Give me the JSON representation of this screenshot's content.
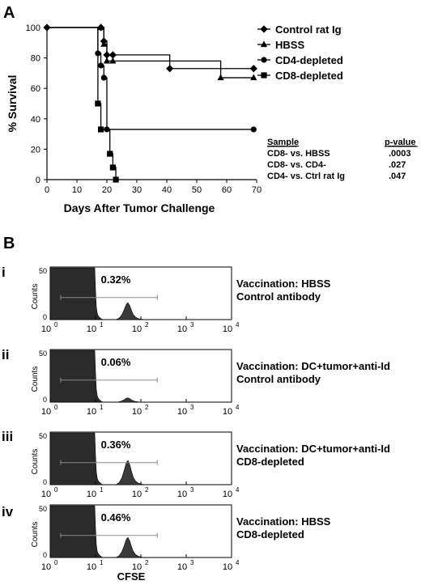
{
  "chart_data": [
    {
      "type": "line",
      "panel_label": "A",
      "xlabel": "Days After Tumor Challenge",
      "ylabel": "% Survival",
      "xlim": [
        0,
        70
      ],
      "ylim": [
        0,
        100
      ],
      "x_ticks": [
        "0",
        "10",
        "20",
        "30",
        "40",
        "50",
        "60",
        "70"
      ],
      "y_ticks": [
        "0",
        "20",
        "40",
        "60",
        "80",
        "100"
      ],
      "legend_placement": "top-right",
      "series": [
        {
          "name": "Control rat Ig",
          "marker": "diamond",
          "x": [
            0,
            18,
            19,
            20,
            22,
            41,
            69
          ],
          "y": [
            100,
            100,
            91,
            82,
            82,
            73,
            73
          ]
        },
        {
          "name": "HBSS",
          "marker": "triangle",
          "x": [
            0,
            18,
            19,
            20,
            22,
            58,
            69
          ],
          "y": [
            100,
            100,
            89,
            78,
            78,
            67,
            67
          ]
        },
        {
          "name": "CD4-depleted",
          "marker": "circle",
          "x": [
            0,
            17,
            18,
            19,
            20,
            69
          ],
          "y": [
            100,
            83,
            75,
            67,
            33,
            33
          ]
        },
        {
          "name": "CD8-depleted",
          "marker": "square",
          "x": [
            0,
            17,
            18,
            21,
            22,
            23
          ],
          "y": [
            100,
            50,
            33,
            17,
            8,
            0
          ]
        }
      ],
      "stats_table": {
        "header_sample": "Sample",
        "header_pvalue": "p-value",
        "rows": [
          {
            "sample": "CD8- vs. HBSS",
            "p": ".0003"
          },
          {
            "sample": "CD8- vs. CD4-",
            "p": ".027"
          },
          {
            "sample": "CD4- vs. Ctrl rat Ig",
            "p": ".047"
          }
        ]
      }
    },
    {
      "type": "area",
      "panel_label": "B",
      "xlabel": "CFSE",
      "ylabel": "Counts",
      "x_scale": "log",
      "xlim": [
        1,
        10000
      ],
      "ylim": [
        0,
        50
      ],
      "x_tick_labels": [
        "10",
        "10",
        "10",
        "10",
        "10"
      ],
      "x_tick_exponents": [
        "0",
        "1",
        "2",
        "3",
        "4"
      ],
      "y_tick_labels": [
        "0",
        "50"
      ],
      "gate_range": [
        1.7,
        230
      ],
      "panels": [
        {
          "roman": "i",
          "percent": "0.32%",
          "peak_height": 0.32,
          "line1": "Vaccination: HBSS",
          "line2": "Control antibody"
        },
        {
          "roman": "ii",
          "percent": "0.06%",
          "peak_height": 0.08,
          "line1": "Vaccination: DC+tumor+anti-Id",
          "line2": "Control antibody"
        },
        {
          "roman": "iii",
          "percent": "0.36%",
          "peak_height": 0.46,
          "line1": "Vaccination: DC+tumor+anti-Id",
          "line2": "CD8-depleted"
        },
        {
          "roman": "iv",
          "percent": "0.46%",
          "peak_height": 0.38,
          "line1": "Vaccination: HBSS",
          "line2": "CD8-depleted"
        }
      ]
    }
  ]
}
